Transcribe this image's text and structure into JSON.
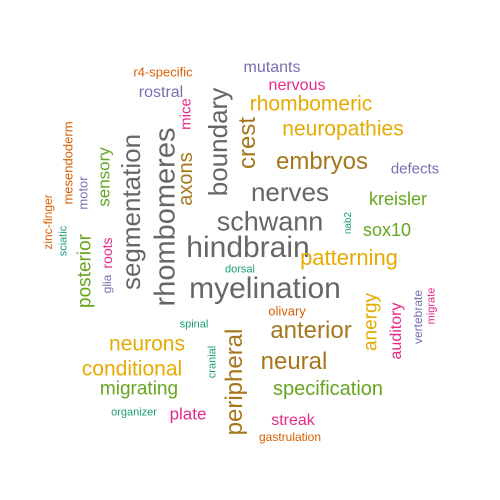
{
  "word_cloud": {
    "colors": {
      "gray": "#666666",
      "brown": "#a6761d",
      "gold": "#e6ab02",
      "green": "#66a61e",
      "pink": "#e7298a",
      "purple": "#7570b3",
      "orange": "#d95f02",
      "teal": "#1b9e77"
    },
    "words": [
      {
        "text": "myelination",
        "color": "gray",
        "vertical": false
      },
      {
        "text": "hindbrain",
        "color": "gray",
        "vertical": false
      },
      {
        "text": "rhombomeres",
        "color": "gray",
        "vertical": true
      },
      {
        "text": "schwann",
        "color": "gray",
        "vertical": false
      },
      {
        "text": "segmentation",
        "color": "gray",
        "vertical": true
      },
      {
        "text": "nerves",
        "color": "gray",
        "vertical": false
      },
      {
        "text": "boundary",
        "color": "gray",
        "vertical": true
      },
      {
        "text": "peripheral",
        "color": "brown",
        "vertical": true
      },
      {
        "text": "anterior",
        "color": "brown",
        "vertical": false
      },
      {
        "text": "neural",
        "color": "brown",
        "vertical": false
      },
      {
        "text": "embryos",
        "color": "brown",
        "vertical": false
      },
      {
        "text": "crest",
        "color": "brown",
        "vertical": true
      },
      {
        "text": "axons",
        "color": "brown",
        "vertical": true
      },
      {
        "text": "patterning",
        "color": "gold",
        "vertical": false
      },
      {
        "text": "neuropathies",
        "color": "gold",
        "vertical": false
      },
      {
        "text": "rhombomeric",
        "color": "gold",
        "vertical": false
      },
      {
        "text": "neurons",
        "color": "gold",
        "vertical": false
      },
      {
        "text": "conditional",
        "color": "gold",
        "vertical": false
      },
      {
        "text": "anergy",
        "color": "gold",
        "vertical": true
      },
      {
        "text": "specification",
        "color": "green",
        "vertical": false
      },
      {
        "text": "migrating",
        "color": "green",
        "vertical": false
      },
      {
        "text": "posterior",
        "color": "green",
        "vertical": true
      },
      {
        "text": "sensory",
        "color": "green",
        "vertical": true
      },
      {
        "text": "kreisler",
        "color": "green",
        "vertical": false
      },
      {
        "text": "sox10",
        "color": "green",
        "vertical": false
      },
      {
        "text": "auditory",
        "color": "pink",
        "vertical": true
      },
      {
        "text": "plate",
        "color": "pink",
        "vertical": false
      },
      {
        "text": "streak",
        "color": "pink",
        "vertical": false
      },
      {
        "text": "nervous",
        "color": "pink",
        "vertical": false
      },
      {
        "text": "mice",
        "color": "pink",
        "vertical": true
      },
      {
        "text": "roots",
        "color": "pink",
        "vertical": true
      },
      {
        "text": "mutants",
        "color": "purple",
        "vertical": false
      },
      {
        "text": "rostral",
        "color": "purple",
        "vertical": false
      },
      {
        "text": "defects",
        "color": "purple",
        "vertical": false
      },
      {
        "text": "vertebrate",
        "color": "purple",
        "vertical": true
      },
      {
        "text": "motor",
        "color": "purple",
        "vertical": true
      },
      {
        "text": "glia",
        "color": "purple",
        "vertical": true
      },
      {
        "text": "olivary",
        "color": "orange",
        "vertical": false
      },
      {
        "text": "r4-specific",
        "color": "orange",
        "vertical": false
      },
      {
        "text": "mesendoderm",
        "color": "orange",
        "vertical": true
      },
      {
        "text": "zinc-finger",
        "color": "orange",
        "vertical": true
      },
      {
        "text": "gastrulation",
        "color": "orange",
        "vertical": false
      },
      {
        "text": "migrate",
        "color": "pink",
        "vertical": true
      },
      {
        "text": "sciatic",
        "color": "teal",
        "vertical": true
      },
      {
        "text": "nab2",
        "color": "teal",
        "vertical": true
      },
      {
        "text": "dorsal",
        "color": "teal",
        "vertical": false
      },
      {
        "text": "spinal",
        "color": "teal",
        "vertical": false
      },
      {
        "text": "cranial",
        "color": "teal",
        "vertical": true
      },
      {
        "text": "organizer",
        "color": "teal",
        "vertical": false
      }
    ]
  }
}
